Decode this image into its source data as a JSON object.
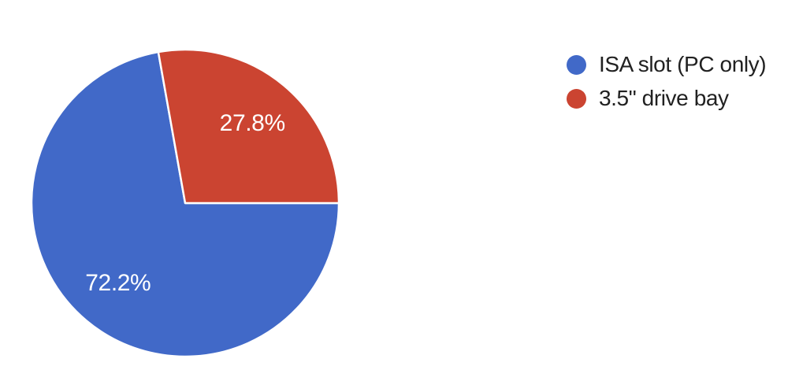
{
  "chart_data": {
    "type": "pie",
    "title": "",
    "legend_position": "right",
    "start_angle_clockwise_from_top_deg": 90,
    "background_color": "#ffffff",
    "slice_label_color": "#ffffff",
    "slice_border_color": "#ffffff",
    "legend_text_color": "#212121",
    "categories": [
      "ISA slot (PC only)",
      "3.5\" drive bay"
    ],
    "series": [
      {
        "name": "ISA slot (PC only)",
        "value": 72.2,
        "display_label": "72.2%",
        "color": "#4169c8"
      },
      {
        "name": "3.5\" drive bay",
        "value": 27.8,
        "display_label": "27.8%",
        "color": "#cb4431"
      }
    ]
  }
}
